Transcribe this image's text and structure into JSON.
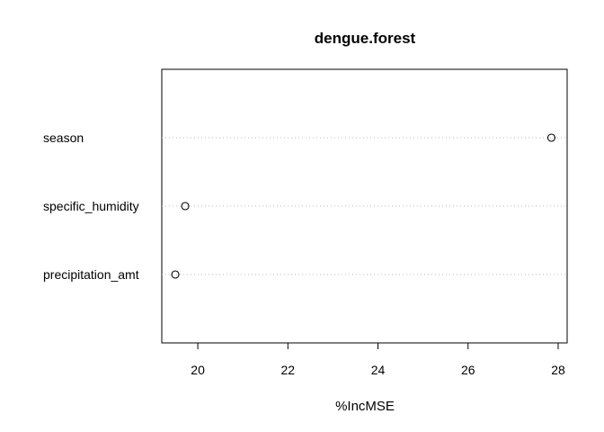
{
  "chart_data": {
    "type": "scatter",
    "title": "dengue.forest",
    "xlabel": "%IncMSE",
    "ylabel": "",
    "categories": [
      "season",
      "specific_humidity",
      "precipitation_amt"
    ],
    "values": [
      27.85,
      19.72,
      19.5
    ],
    "xlim": [
      19.2,
      28.2
    ],
    "xticks": [
      "20",
      "22",
      "24",
      "26",
      "28"
    ],
    "grid": "horizontal dotted",
    "legend": "none"
  }
}
